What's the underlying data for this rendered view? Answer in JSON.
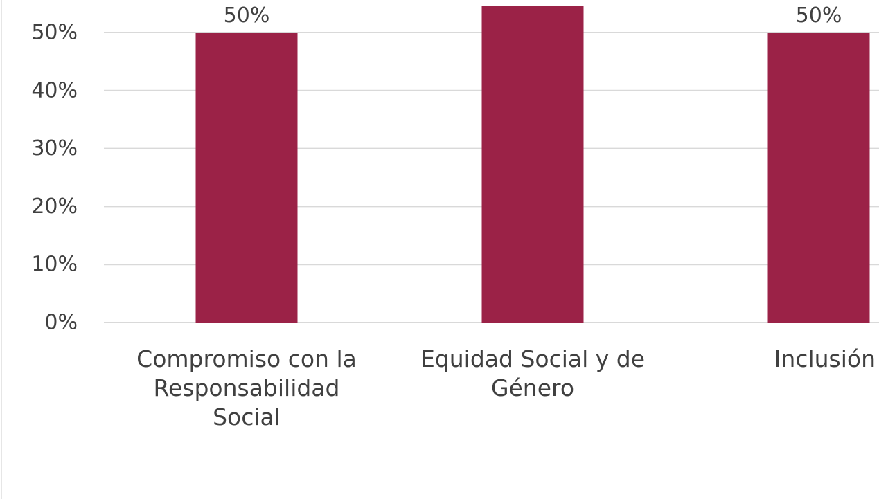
{
  "chart_data": {
    "type": "bar",
    "categories": [
      [
        "Compromiso con la",
        "Responsabilidad",
        "Social"
      ],
      [
        "Equidad Social y de",
        "Género"
      ],
      [
        "Inclusión"
      ]
    ],
    "values": [
      50,
      55,
      50
    ],
    "data_labels": [
      "50%",
      "",
      "50%"
    ],
    "y_ticks": [
      "0%",
      "10%",
      "20%",
      "30%",
      "40%",
      "50%"
    ],
    "ylim": [
      0,
      55
    ],
    "grid": true,
    "colors": {
      "bar": "#9B2247",
      "grid": "#d9d9d9",
      "text": "#404040"
    }
  }
}
